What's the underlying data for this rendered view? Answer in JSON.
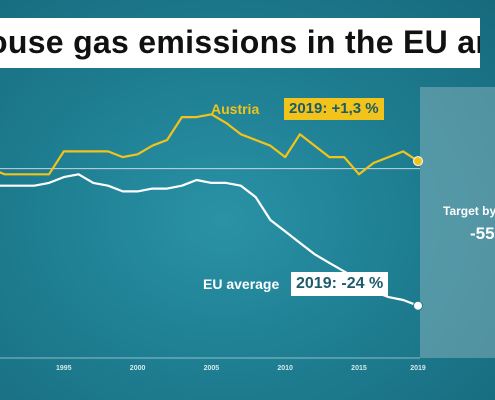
{
  "title": "ouse gas emissions in the EU and A",
  "target": {
    "label": "Target by",
    "value": "-55"
  },
  "chart_data": {
    "type": "line",
    "x_ticks": [
      1995,
      2000,
      2005,
      2010,
      2015,
      2019
    ],
    "xlim": [
      1990,
      2019
    ],
    "ylim": [
      -30,
      12
    ],
    "baseline": 0,
    "grid": false,
    "series": [
      {
        "name": "Austria",
        "color": "#f2c31a",
        "end_label": "2019: +1,3 %",
        "x": [
          1990,
          1991,
          1992,
          1993,
          1994,
          1995,
          1996,
          1997,
          1998,
          1999,
          2000,
          2001,
          2002,
          2003,
          2004,
          2005,
          2006,
          2007,
          2008,
          2009,
          2010,
          2011,
          2012,
          2013,
          2014,
          2015,
          2016,
          2017,
          2018,
          2019
        ],
        "values": [
          0,
          -1,
          -1,
          -1,
          -1,
          3,
          3,
          3,
          3,
          2,
          2.5,
          4,
          5,
          9,
          9,
          9.5,
          8,
          6,
          5,
          4,
          2,
          6,
          4,
          2,
          2,
          -1,
          1,
          2,
          3,
          1.3
        ]
      },
      {
        "name": "EU average",
        "color": "#ffffff",
        "end_label": "2019: -24 %",
        "x": [
          1990,
          1991,
          1992,
          1993,
          1994,
          1995,
          1996,
          1997,
          1998,
          1999,
          2000,
          2001,
          2002,
          2003,
          2004,
          2005,
          2006,
          2007,
          2008,
          2009,
          2010,
          2011,
          2012,
          2013,
          2014,
          2015,
          2016,
          2017,
          2018,
          2019
        ],
        "values": [
          -3,
          -3,
          -3,
          -3,
          -2.5,
          -1.5,
          -1,
          -2.5,
          -3,
          -4,
          -4,
          -3.5,
          -3.5,
          -3,
          -2,
          -2.5,
          -2.5,
          -3,
          -5,
          -9,
          -11,
          -13,
          -15,
          -16.5,
          -18,
          -19.5,
          -21.5,
          -22.5,
          -23,
          -24
        ]
      }
    ]
  }
}
